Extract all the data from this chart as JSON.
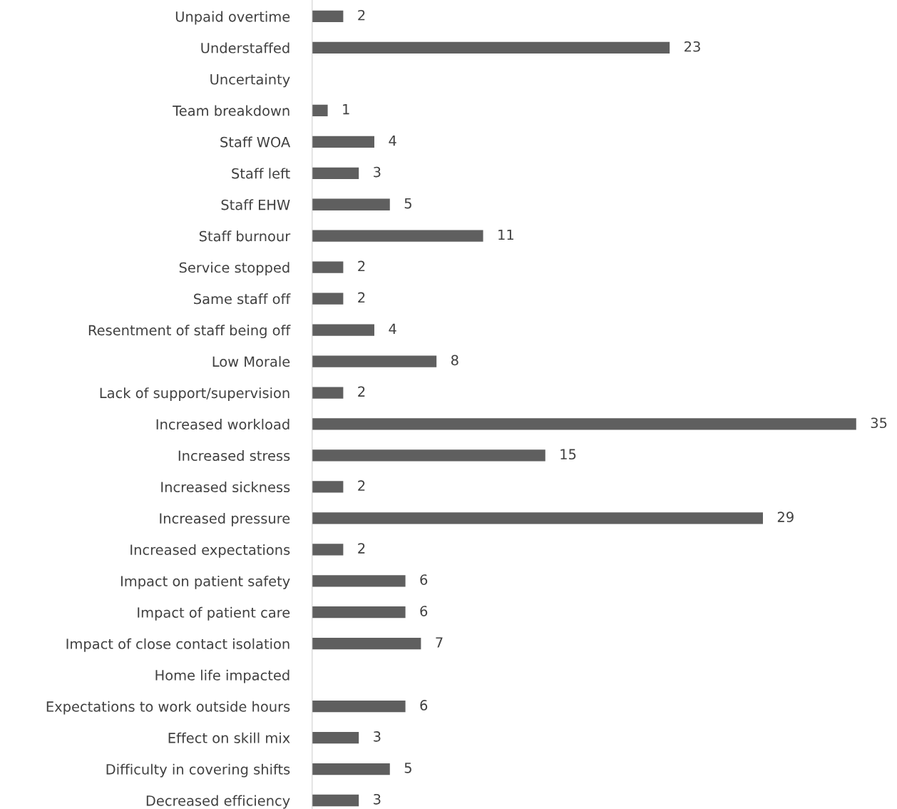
{
  "chart_data": {
    "type": "bar",
    "orientation": "horizontal",
    "data_labels": true,
    "grid": false,
    "legend": false,
    "categories": [
      "Unpaid overtime",
      "Understaffed",
      "Uncertainty",
      "Team breakdown",
      "Staff WOA",
      "Staff left",
      "Staff EHW",
      "Staff burnour",
      "Service stopped",
      "Same staff off",
      "Resentment of staff being off",
      "Low Morale",
      "Lack of support/supervision",
      "Increased workload",
      "Increased stress",
      "Increased sickness",
      "Increased pressure",
      "Increased expectations",
      "Impact on patient safety",
      "Impact of patient care",
      "Impact of close contact isolation",
      "Home life impacted",
      "Expectations to work outside hours",
      "Effect on skill mix",
      "Difficulty in covering shifts",
      "Decreased efficiency"
    ],
    "values": [
      2,
      23,
      null,
      1,
      4,
      3,
      5,
      11,
      2,
      2,
      4,
      8,
      2,
      35,
      15,
      2,
      29,
      2,
      6,
      6,
      7,
      null,
      6,
      3,
      5,
      3
    ],
    "color": "#5f5f5f"
  }
}
